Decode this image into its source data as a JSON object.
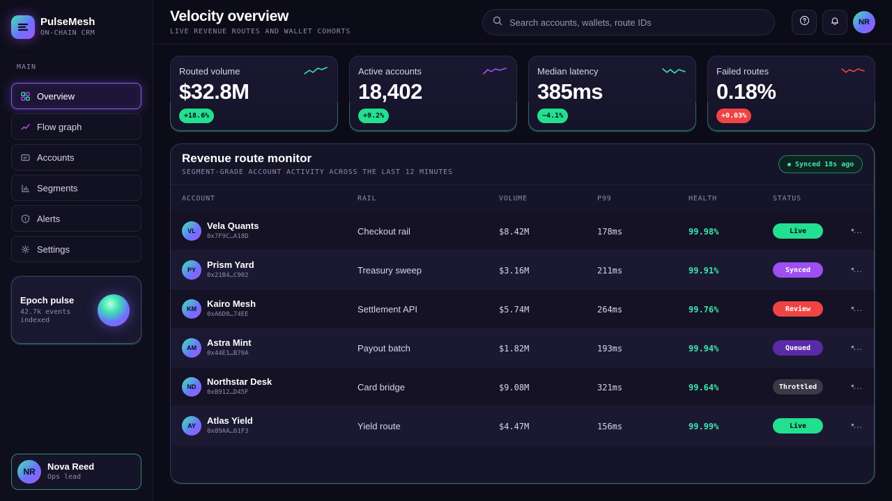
{
  "brand": {
    "name": "PulseMesh",
    "tagline": "ON-CHAIN CRM"
  },
  "sidebar": {
    "section_label": "MAIN",
    "items": [
      {
        "label": "Overview",
        "icon": "grid-icon",
        "active": true
      },
      {
        "label": "Flow graph",
        "icon": "trend-line-icon"
      },
      {
        "label": "Accounts",
        "icon": "card-icon"
      },
      {
        "label": "Segments",
        "icon": "bar-chart-icon"
      },
      {
        "label": "Alerts",
        "icon": "shield-alert-icon"
      },
      {
        "label": "Settings",
        "icon": "gear-icon"
      }
    ],
    "epoch": {
      "title": "Epoch pulse",
      "subtitle": "42.7k events indexed"
    },
    "user": {
      "initials": "NR",
      "name": "Nova Reed",
      "role": "Ops lead"
    }
  },
  "header": {
    "title": "Velocity overview",
    "subtitle": "LIVE REVENUE ROUTES AND WALLET COHORTS",
    "search_placeholder": "Search accounts, wallets, route IDs",
    "avatar_initials": "NR"
  },
  "kpis": [
    {
      "label": "Routed volume",
      "value": "$32.8M",
      "delta": "+18.6%",
      "trend": "up",
      "color": "#3ee6b0"
    },
    {
      "label": "Active accounts",
      "value": "18,402",
      "delta": "+9.2%",
      "trend": "up",
      "color": "#a855f7"
    },
    {
      "label": "Median latency",
      "value": "385ms",
      "delta": "−4.1%",
      "trend": "down",
      "color": "#3ee6b0"
    },
    {
      "label": "Failed routes",
      "value": "0.18%",
      "delta": "+0.03%",
      "trend": "bad",
      "color": "#ef4444"
    }
  ],
  "table": {
    "title": "Revenue route monitor",
    "subtitle": "SEGMENT-GRADE ACCOUNT ACTIVITY ACROSS THE LAST 12 MINUTES",
    "sync_status": "Synced 18s ago",
    "columns": [
      "ACCOUNT",
      "RAIL",
      "VOLUME",
      "P99",
      "HEALTH",
      "STATUS"
    ],
    "rows": [
      {
        "initials": "VL",
        "name": "Vela Quants",
        "wallet": "0x7F9C…A18D",
        "rail": "Checkout rail",
        "volume": "$8.42M",
        "p99": "178ms",
        "health": "99.98%",
        "status": "Live"
      },
      {
        "initials": "PY",
        "name": "Prism Yard",
        "wallet": "0x21B4…C902",
        "rail": "Treasury sweep",
        "volume": "$3.16M",
        "p99": "211ms",
        "health": "99.91%",
        "status": "Synced"
      },
      {
        "initials": "KM",
        "name": "Kairo Mesh",
        "wallet": "0xA6D0…74EE",
        "rail": "Settlement API",
        "volume": "$5.74M",
        "p99": "264ms",
        "health": "99.76%",
        "status": "Review"
      },
      {
        "initials": "AM",
        "name": "Astra Mint",
        "wallet": "0x44E1…B70A",
        "rail": "Payout batch",
        "volume": "$1.82M",
        "p99": "193ms",
        "health": "99.94%",
        "status": "Queued"
      },
      {
        "initials": "ND",
        "name": "Northstar Desk",
        "wallet": "0xB912…D45F",
        "rail": "Card bridge",
        "volume": "$9.08M",
        "p99": "321ms",
        "health": "99.64%",
        "status": "Throttled"
      },
      {
        "initials": "AY",
        "name": "Atlas Yield",
        "wallet": "0x09AA…61F3",
        "rail": "Yield route",
        "volume": "$4.47M",
        "p99": "156ms",
        "health": "99.99%",
        "status": "Live"
      }
    ]
  },
  "status_colors": {
    "Live": "#22e08f",
    "Synced": "#9d4ff0",
    "Review": "#ef4444",
    "Queued": "#5b2aa8",
    "Throttled": "#3a3946"
  }
}
